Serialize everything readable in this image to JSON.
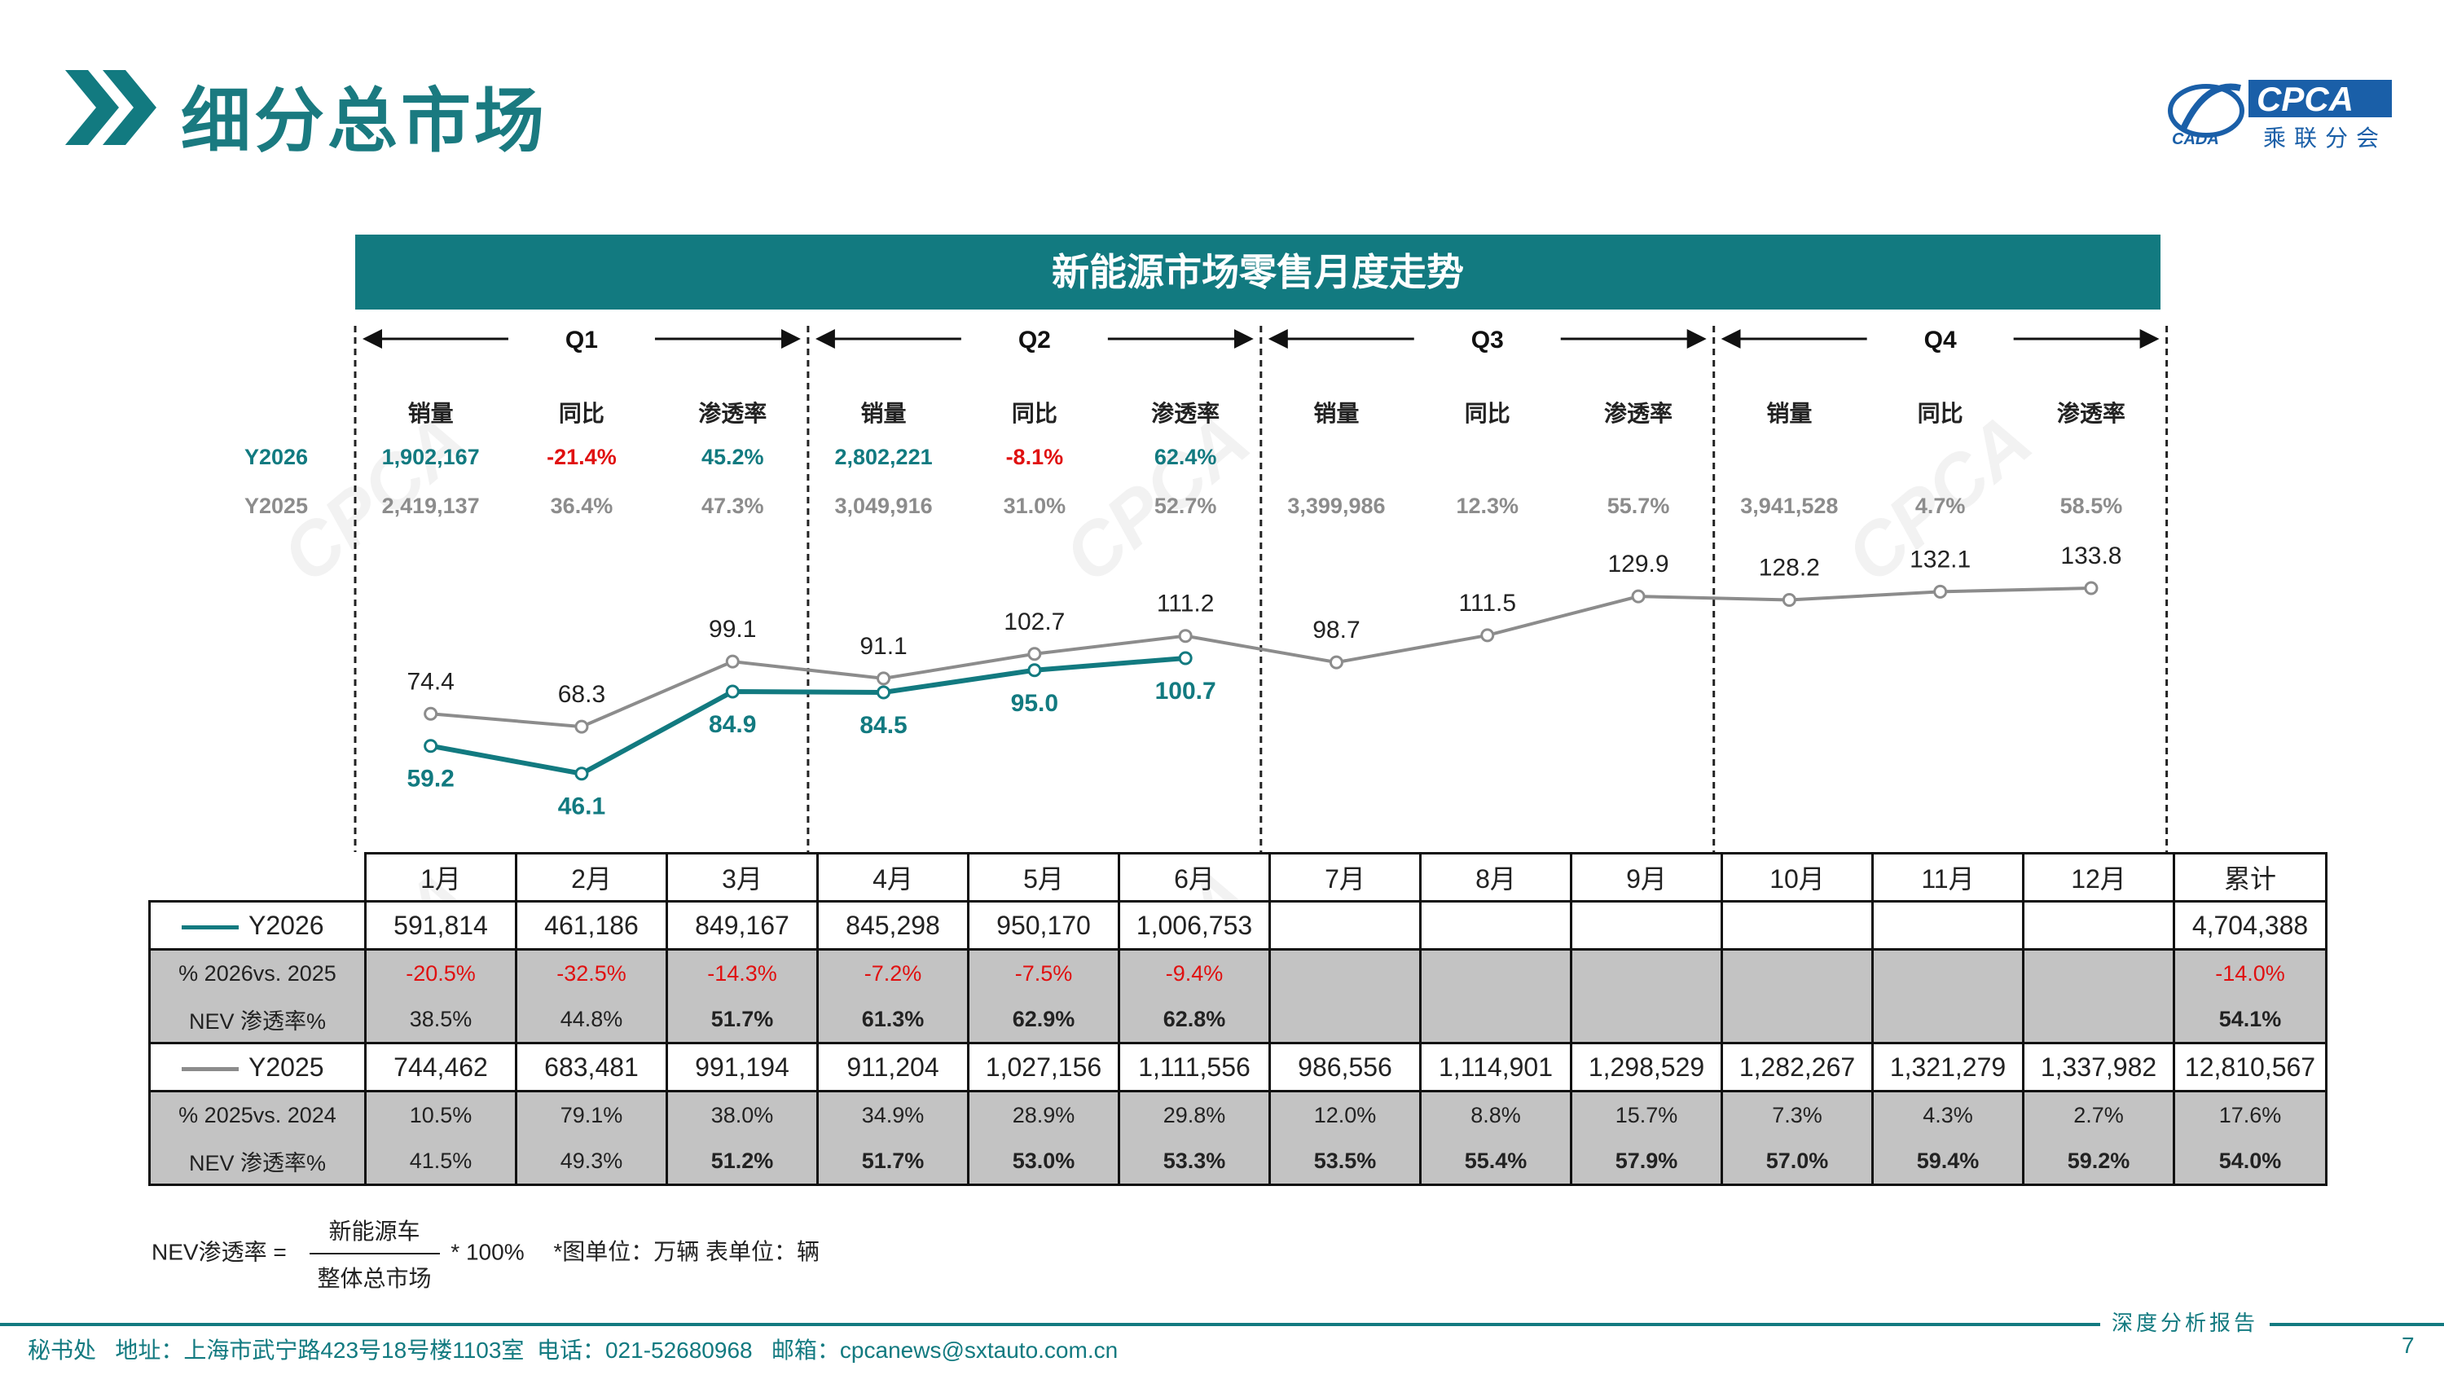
{
  "header": {
    "title": "细分总市场",
    "logo_text": "CPCA",
    "logo_sub": "乘联分会",
    "logo_mark": "CADA"
  },
  "banner": "新能源市场零售月度走势",
  "quarters": [
    "Q1",
    "Q2",
    "Q3",
    "Q4"
  ],
  "quarter_cols": [
    "销量",
    "同比",
    "渗透率"
  ],
  "quarter_summary": {
    "Y2026": {
      "label": "Y2026",
      "values": [
        [
          "1,902,167",
          "-21.4%",
          "45.2%"
        ],
        [
          "2,802,221",
          "-8.1%",
          "62.4%"
        ],
        [
          "",
          "",
          ""
        ],
        [
          "",
          "",
          ""
        ]
      ]
    },
    "Y2025": {
      "label": "Y2025",
      "values": [
        [
          "2,419,137",
          "36.4%",
          "47.3%"
        ],
        [
          "3,049,916",
          "31.0%",
          "52.7%"
        ],
        [
          "3,399,986",
          "12.3%",
          "55.7%"
        ],
        [
          "3,941,528",
          "4.7%",
          "58.5%"
        ]
      ]
    }
  },
  "chart_data": {
    "type": "line",
    "categories": [
      "1月",
      "2月",
      "3月",
      "4月",
      "5月",
      "6月",
      "7月",
      "8月",
      "9月",
      "10月",
      "11月",
      "12月"
    ],
    "series": [
      {
        "name": "Y2026",
        "values": [
          59.2,
          46.1,
          84.9,
          84.5,
          95.0,
          100.7,
          null,
          null,
          null,
          null,
          null,
          null
        ],
        "color": "#127a80"
      },
      {
        "name": "Y2025",
        "values": [
          74.4,
          68.3,
          99.1,
          91.1,
          102.7,
          111.2,
          98.7,
          111.5,
          129.9,
          128.2,
          132.1,
          133.8
        ],
        "color": "#8c8c8c"
      }
    ],
    "unit": "万辆",
    "grid": false
  },
  "table": {
    "headers": [
      "1月",
      "2月",
      "3月",
      "4月",
      "5月",
      "6月",
      "7月",
      "8月",
      "9月",
      "10月",
      "11月",
      "12月",
      "累计"
    ],
    "rows": [
      {
        "label": "Y2026",
        "values": [
          "591,814",
          "461,186",
          "849,167",
          "845,298",
          "950,170",
          "1,006,753",
          "",
          "",
          "",
          "",
          "",
          ""
        ],
        "total": "4,704,388"
      },
      {
        "label": "% 2026vs. 2025",
        "values": [
          "-20.5%",
          "-32.5%",
          "-14.3%",
          "-7.2%",
          "-7.5%",
          "-9.4%",
          "",
          "",
          "",
          "",
          "",
          ""
        ],
        "total": "-14.0%"
      },
      {
        "label": "NEV 渗透率%",
        "values": [
          "38.5%",
          "44.8%",
          "51.7%",
          "61.3%",
          "62.9%",
          "62.8%",
          "",
          "",
          "",
          "",
          "",
          ""
        ],
        "total": "54.1%"
      },
      {
        "label": "Y2025",
        "values": [
          "744,462",
          "683,481",
          "991,194",
          "911,204",
          "1,027,156",
          "1,111,556",
          "986,556",
          "1,114,901",
          "1,298,529",
          "1,282,267",
          "1,321,279",
          "1,337,982"
        ],
        "total": "12,810,567"
      },
      {
        "label": "% 2025vs. 2024",
        "values": [
          "10.5%",
          "79.1%",
          "38.0%",
          "34.9%",
          "28.9%",
          "29.8%",
          "12.0%",
          "8.8%",
          "15.7%",
          "7.3%",
          "4.3%",
          "2.7%"
        ],
        "total": "17.6%"
      },
      {
        "label": "NEV 渗透率%",
        "values": [
          "41.5%",
          "49.3%",
          "51.2%",
          "51.7%",
          "53.0%",
          "53.3%",
          "53.5%",
          "55.4%",
          "57.9%",
          "57.0%",
          "59.4%",
          "59.2%"
        ],
        "total": "54.0%"
      }
    ]
  },
  "formula": {
    "lhs": "NEV渗透率 =",
    "numerator": "新能源车",
    "denominator": "整体总市场",
    "factor": "* 100%",
    "units_note": "*图单位：万辆     表单位：辆"
  },
  "footer": {
    "contact": "秘书处   地址：上海市武宁路423号18号楼1103室  电话：021-52680968   邮箱：cpcanews@sxtauto.com.cn",
    "tag": "深度分析报告",
    "page": "7"
  },
  "colors": {
    "teal": "#127a80",
    "grey": "#8c8c8c",
    "red": "#e01010",
    "table_grey": "#c3c3c3"
  }
}
